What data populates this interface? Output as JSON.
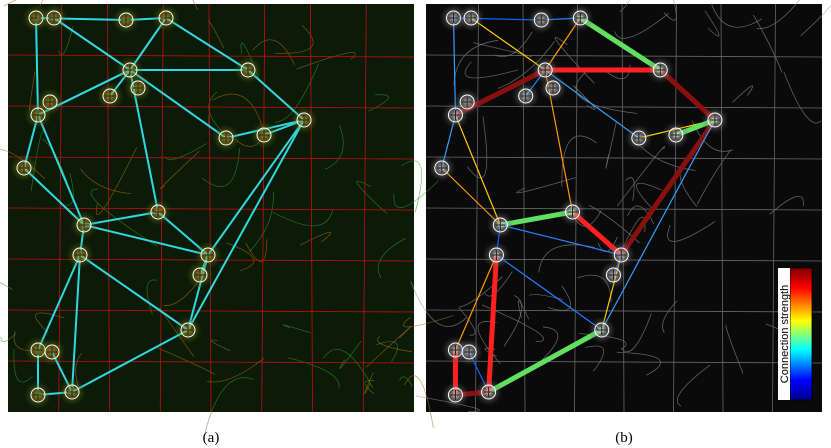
{
  "panels": [
    {
      "caption": "(a)"
    },
    {
      "caption": "(b)",
      "colorbar": {
        "label": "Connection strength"
      }
    }
  ]
}
